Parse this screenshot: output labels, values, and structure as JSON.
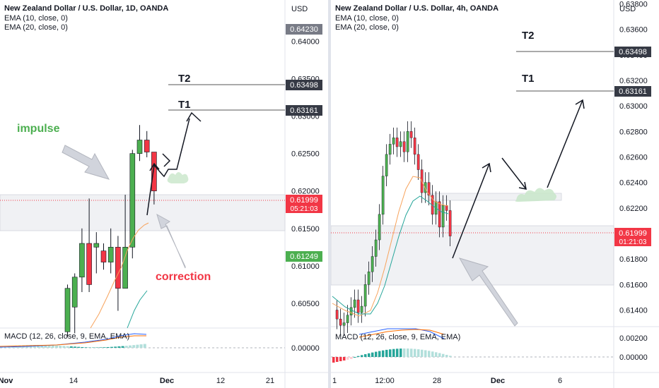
{
  "left": {
    "title": "New Zealand Dollar / U.S. Dollar, 1D, OANDA",
    "ema1": "EMA (10, close, 0)",
    "ema2": "EMA (20, close, 0)",
    "currency": "USD",
    "macd_label": "MACD (12, 26, close, 9, EMA, EMA)",
    "macd_zero": "0.00000",
    "annotations": {
      "impulse": "impulse",
      "correction": "correction",
      "t1": "T1",
      "t2": "T2"
    },
    "badges": {
      "high": "0.64230",
      "t2": "0.63498",
      "t1": "0.63161",
      "price": "0.61999",
      "countdown": "05:21:03",
      "ema": "0.61249"
    },
    "colors": {
      "impulse": "#4caf50",
      "correction": "#f23645",
      "up": "#4caf50",
      "down": "#f23645",
      "ema10": "#f7a35c",
      "ema20": "#26a69a"
    }
  },
  "right": {
    "title": "New Zealand Dollar / U.S. Dollar, 4h, OANDA",
    "ema1": "EMA (10, close, 0)",
    "ema2": "EMA (20, close, 0)",
    "currency": "USD",
    "macd_label": "MACD (12, 26, close, 9, EMA, EMA)",
    "annotations": {
      "t1": "T1",
      "t2": "T2"
    },
    "badges": {
      "t2": "0.63498",
      "t1": "0.63161",
      "price": "0.61999",
      "countdown": "01:21:03"
    }
  },
  "chart_data": [
    {
      "type": "candlestick",
      "title": "New Zealand Dollar / U.S. Dollar, 1D, OANDA",
      "x_ticks": [
        "Nov",
        "14",
        "Dec",
        "12",
        "21"
      ],
      "y_ticks": [
        0.605,
        0.61,
        0.615,
        0.62,
        0.625,
        0.63,
        0.635,
        0.64
      ],
      "ylim": [
        0.6017,
        0.6455
      ],
      "candles": [
        {
          "o": 0.6012,
          "h": 0.6075,
          "l": 0.6005,
          "c": 0.607
        },
        {
          "o": 0.6045,
          "h": 0.609,
          "l": 0.601,
          "c": 0.6085
        },
        {
          "o": 0.6085,
          "h": 0.615,
          "l": 0.6065,
          "c": 0.613
        },
        {
          "o": 0.613,
          "h": 0.619,
          "l": 0.6065,
          "c": 0.6075
        },
        {
          "o": 0.6125,
          "h": 0.6145,
          "l": 0.609,
          "c": 0.613
        },
        {
          "o": 0.612,
          "h": 0.613,
          "l": 0.6095,
          "c": 0.6105
        },
        {
          "o": 0.6105,
          "h": 0.615,
          "l": 0.609,
          "c": 0.6125
        },
        {
          "o": 0.6125,
          "h": 0.614,
          "l": 0.604,
          "c": 0.607
        },
        {
          "o": 0.607,
          "h": 0.6195,
          "l": 0.607,
          "c": 0.6125
        },
        {
          "o": 0.6125,
          "h": 0.6255,
          "l": 0.611,
          "c": 0.625
        },
        {
          "o": 0.625,
          "h": 0.6288,
          "l": 0.624,
          "c": 0.6268
        },
        {
          "o": 0.6268,
          "h": 0.628,
          "l": 0.6245,
          "c": 0.6252
        },
        {
          "o": 0.6252,
          "h": 0.6252,
          "l": 0.6182,
          "c": 0.62
        }
      ],
      "support_zone": [
        0.616,
        0.6208
      ],
      "target_levels": {
        "T1": 0.63161,
        "T2": 0.63498
      },
      "last_price": 0.61999
    },
    {
      "type": "candlestick",
      "title": "New Zealand Dollar / U.S. Dollar, 4h, OANDA",
      "x_ticks": [
        "1",
        "12:00",
        "28",
        "Dec",
        "6"
      ],
      "y_ticks": [
        0.614,
        0.616,
        0.618,
        0.622,
        0.624,
        0.626,
        0.628,
        0.63,
        0.632,
        0.634,
        0.636,
        0.638
      ],
      "ylim": [
        0.6127,
        0.6383
      ],
      "target_levels": {
        "T1": 0.63161,
        "T2": 0.63498
      },
      "support_zone": [
        0.6157,
        0.6208
      ],
      "last_price": 0.61999
    }
  ]
}
